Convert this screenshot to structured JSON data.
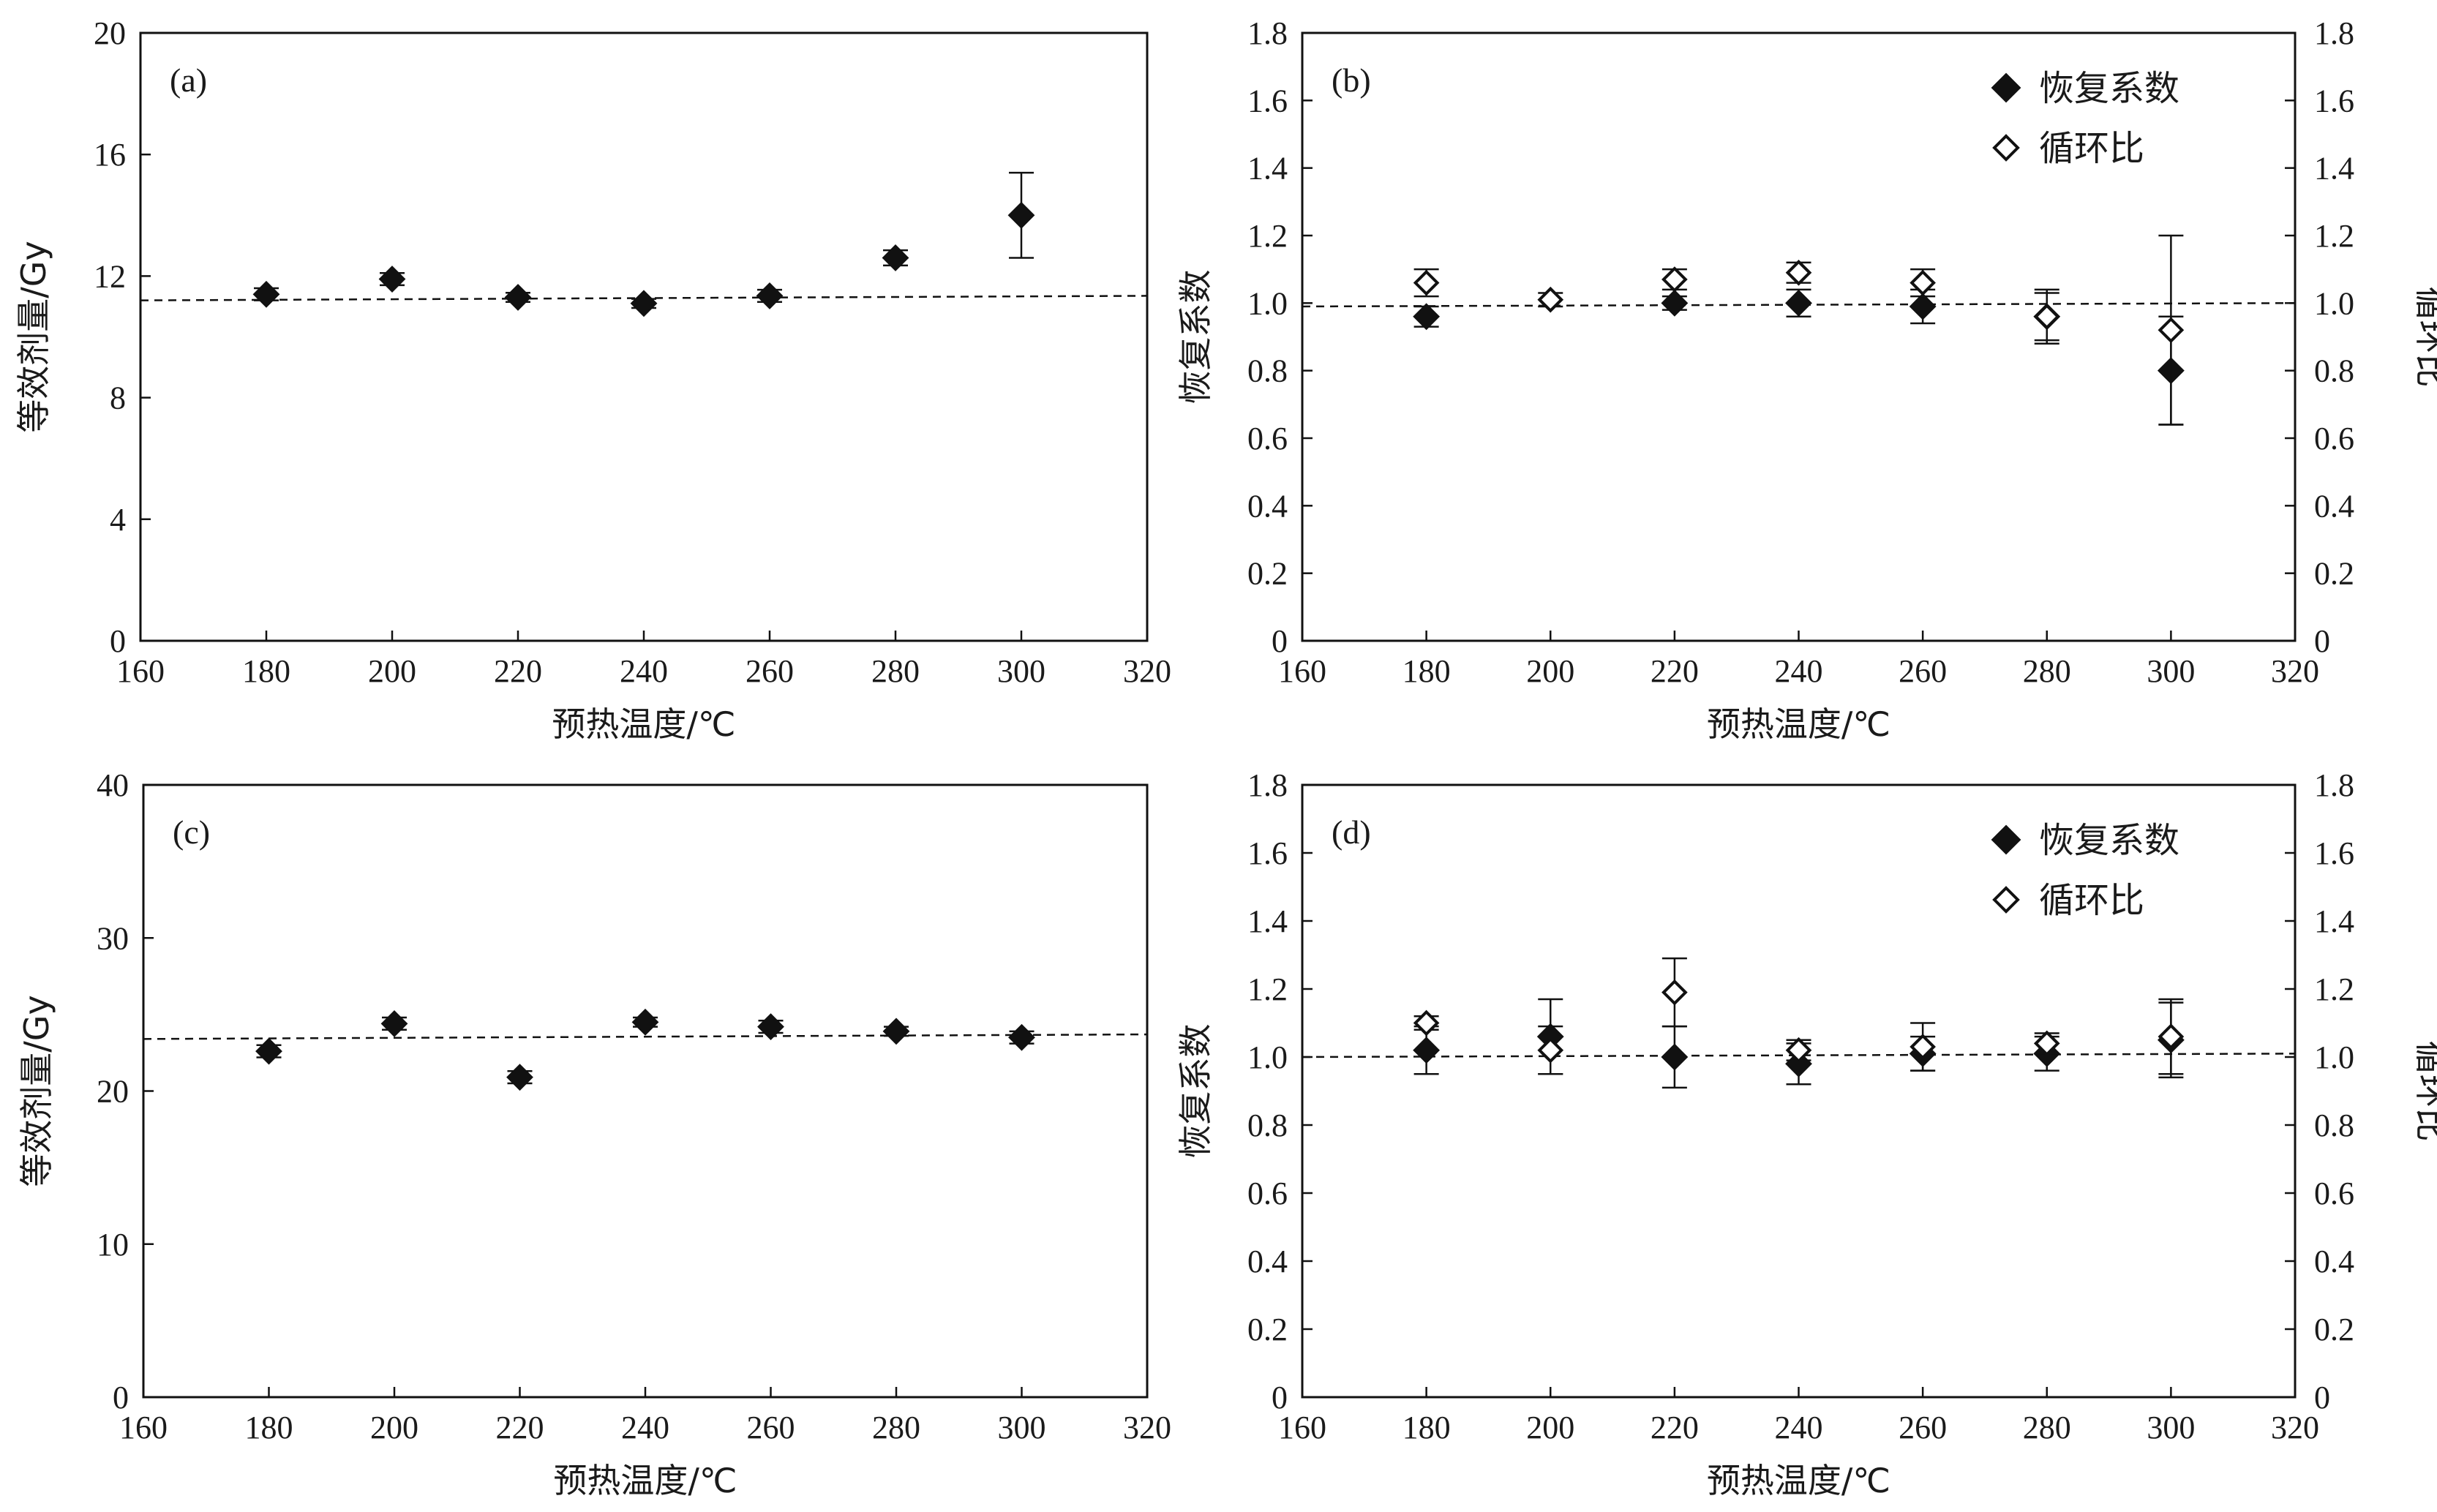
{
  "chart_data": [
    {
      "panel": "a",
      "label": "(a)",
      "type": "scatter",
      "xlabel": "预热温度/℃",
      "ylabel": "等效剂量/Gy",
      "xlim": [
        160,
        320
      ],
      "ylim": [
        0,
        20
      ],
      "xticks": [
        160,
        180,
        200,
        220,
        240,
        260,
        280,
        300,
        320
      ],
      "yticks": [
        0,
        4,
        8,
        12,
        16,
        20
      ],
      "ref_line": [
        11.2,
        11.35
      ],
      "legend": null,
      "series": [
        {
          "marker": "filled-diamond",
          "points": [
            {
              "x": 180,
              "y": 11.4,
              "err": 0.2
            },
            {
              "x": 200,
              "y": 11.9,
              "err": 0.2
            },
            {
              "x": 220,
              "y": 11.3,
              "err": 0.15
            },
            {
              "x": 240,
              "y": 11.1,
              "err": 0.15
            },
            {
              "x": 260,
              "y": 11.35,
              "err": 0.2
            },
            {
              "x": 280,
              "y": 12.6,
              "err": 0.25
            },
            {
              "x": 300,
              "y": 14.0,
              "err": 1.4
            }
          ]
        }
      ]
    },
    {
      "panel": "b",
      "label": "(b)",
      "type": "scatter",
      "xlabel": "预热温度/℃",
      "ylabel": "恢复系数",
      "ylabel_right": "循环比",
      "xlim": [
        160,
        320
      ],
      "ylim": [
        0,
        1.8
      ],
      "xticks": [
        160,
        180,
        200,
        220,
        240,
        260,
        280,
        300,
        320
      ],
      "yticks": [
        "0",
        "0.2",
        "0.4",
        "0.6",
        "0.8",
        "1.0",
        "1.2",
        "1.4",
        "1.6",
        "1.8"
      ],
      "yticks_right": [
        "0",
        "0.2",
        "0.4",
        "0.6",
        "0.8",
        "1.0",
        "1.2",
        "1.4",
        "1.6",
        "1.8"
      ],
      "ref_line": [
        0.99,
        1.0
      ],
      "legend": {
        "placement": "top-right",
        "items": [
          "恢复系数",
          "循环比"
        ]
      },
      "series": [
        {
          "name": "恢复系数",
          "marker": "filled-diamond",
          "points": [
            {
              "x": 180,
              "y": 0.96,
              "err": 0.03
            },
            {
              "x": 220,
              "y": 1.0,
              "err": 0.02
            },
            {
              "x": 240,
              "y": 1.0,
              "err": 0.04
            },
            {
              "x": 260,
              "y": 0.99,
              "err": 0.05
            },
            {
              "x": 280,
              "y": 0.96,
              "err": 0.07
            },
            {
              "x": 300,
              "y": 0.8,
              "err": 0.16
            }
          ]
        },
        {
          "name": "循环比",
          "marker": "open-diamond",
          "points": [
            {
              "x": 180,
              "y": 1.06,
              "err": 0.04
            },
            {
              "x": 200,
              "y": 1.01,
              "err": 0.02
            },
            {
              "x": 220,
              "y": 1.07,
              "err": 0.03
            },
            {
              "x": 240,
              "y": 1.09,
              "err": 0.03
            },
            {
              "x": 260,
              "y": 1.06,
              "err": 0.04
            },
            {
              "x": 280,
              "y": 0.96,
              "err": 0.08
            },
            {
              "x": 300,
              "y": 0.92,
              "err": 0.28
            }
          ]
        }
      ]
    },
    {
      "panel": "c",
      "label": "(c)",
      "type": "scatter",
      "xlabel": "预热温度/℃",
      "ylabel": "等效剂量/Gy",
      "xlim": [
        160,
        320
      ],
      "ylim": [
        0,
        40
      ],
      "xticks": [
        160,
        180,
        200,
        220,
        240,
        260,
        280,
        300,
        320
      ],
      "yticks": [
        0,
        10,
        20,
        30,
        40
      ],
      "ref_line": [
        23.4,
        23.7
      ],
      "legend": null,
      "series": [
        {
          "marker": "filled-diamond",
          "points": [
            {
              "x": 180,
              "y": 22.6,
              "err": 0.4
            },
            {
              "x": 200,
              "y": 24.4,
              "err": 0.4
            },
            {
              "x": 220,
              "y": 20.9,
              "err": 0.4
            },
            {
              "x": 240,
              "y": 24.5,
              "err": 0.3
            },
            {
              "x": 260,
              "y": 24.2,
              "err": 0.4
            },
            {
              "x": 280,
              "y": 23.9,
              "err": 0.3
            },
            {
              "x": 300,
              "y": 23.5,
              "err": 0.4
            }
          ]
        }
      ]
    },
    {
      "panel": "d",
      "label": "(d)",
      "type": "scatter",
      "xlabel": "预热温度/℃",
      "ylabel": "恢复系数",
      "ylabel_right": "循环比",
      "xlim": [
        160,
        320
      ],
      "ylim": [
        0,
        1.8
      ],
      "xticks": [
        160,
        180,
        200,
        220,
        240,
        260,
        280,
        300,
        320
      ],
      "yticks": [
        "0",
        "0.2",
        "0.4",
        "0.6",
        "0.8",
        "1.0",
        "1.2",
        "1.4",
        "1.6",
        "1.8"
      ],
      "yticks_right": [
        "0",
        "0.2",
        "0.4",
        "0.6",
        "0.8",
        "1.0",
        "1.2",
        "1.4",
        "1.6",
        "1.8"
      ],
      "ref_line": [
        1.0,
        1.01
      ],
      "legend": {
        "placement": "top-right",
        "items": [
          "恢复系数",
          "循环比"
        ]
      },
      "series": [
        {
          "name": "恢复系数",
          "marker": "filled-diamond",
          "points": [
            {
              "x": 180,
              "y": 1.02,
              "err": 0.07
            },
            {
              "x": 200,
              "y": 1.06,
              "err": 0.11
            },
            {
              "x": 220,
              "y": 1.0,
              "err": 0.09
            },
            {
              "x": 240,
              "y": 0.98,
              "err": 0.06
            },
            {
              "x": 260,
              "y": 1.01,
              "err": 0.05
            },
            {
              "x": 280,
              "y": 1.01,
              "err": 0.05
            },
            {
              "x": 300,
              "y": 1.05,
              "err": 0.11
            }
          ]
        },
        {
          "name": "循环比",
          "marker": "open-diamond",
          "points": [
            {
              "x": 180,
              "y": 1.1,
              "err": 0.02
            },
            {
              "x": 200,
              "y": 1.02,
              "err": 0.07
            },
            {
              "x": 220,
              "y": 1.19,
              "err": 0.1
            },
            {
              "x": 240,
              "y": 1.02,
              "err": 0.03
            },
            {
              "x": 260,
              "y": 1.03,
              "err": 0.07
            },
            {
              "x": 280,
              "y": 1.04,
              "err": 0.03
            },
            {
              "x": 300,
              "y": 1.06,
              "err": 0.11
            }
          ]
        }
      ]
    }
  ]
}
